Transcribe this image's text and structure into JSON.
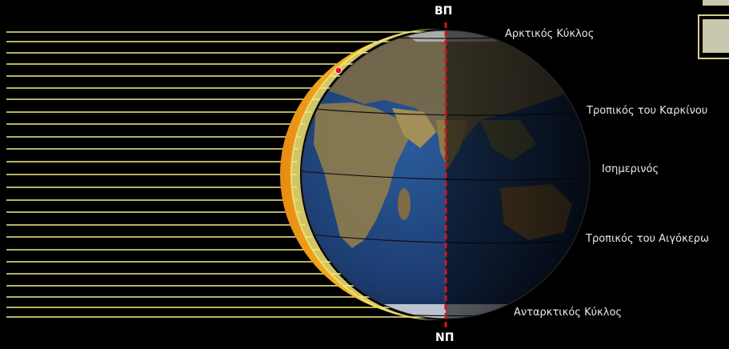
{
  "poles": {
    "north": "ΒΠ",
    "south": "ΝΠ"
  },
  "circles": {
    "arctic": "Αρκτικός Κύκλος",
    "cancer": "Τροπικός του Καρκίνου",
    "equator": "Ισημερινός",
    "capricorn": "Τροπικός του Αιγόκερω",
    "antarctic": "Ανταρκτικός Κύκλος"
  },
  "colors": {
    "background": "#000000",
    "sun_rays": "#f2ec8a",
    "crescent": "#f0d23a",
    "axis": "#d0151b",
    "ocean": "#1d3d72",
    "land": "#7d6a44",
    "label_text": "#e8e8e8"
  }
}
